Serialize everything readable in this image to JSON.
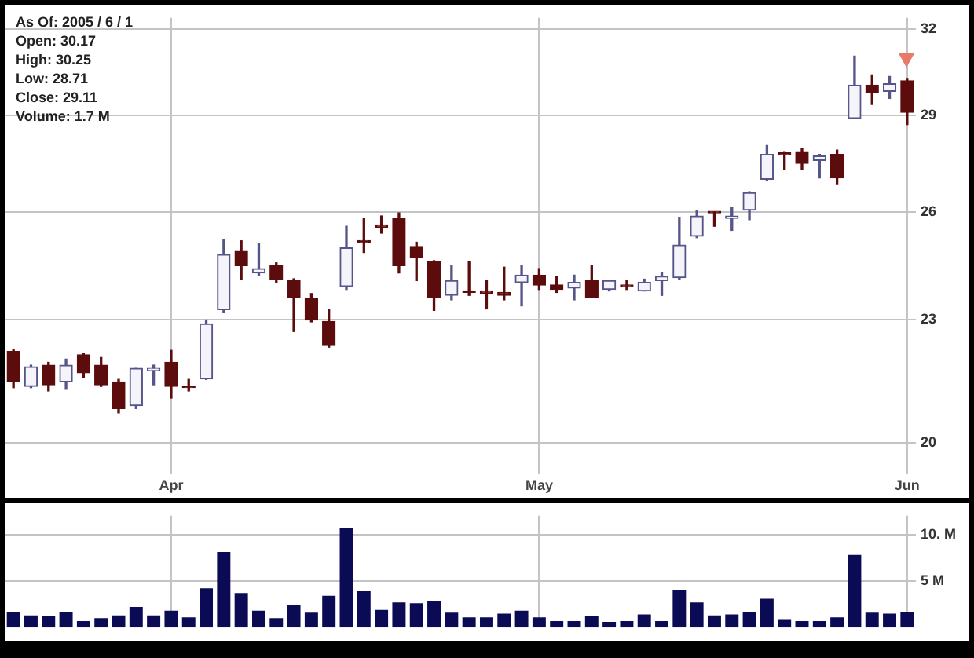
{
  "chart_data": [
    {
      "type": "candlestick",
      "annotations": [
        "As Of: 2005 / 6 / 1",
        "Open: 30.17",
        "High: 30.25",
        "Low: 28.71",
        "Close: 29.11",
        "Volume: 1.7 M"
      ],
      "categories": [
        null,
        null,
        null,
        null,
        null,
        null,
        null,
        null,
        null,
        "Apr",
        null,
        null,
        null,
        null,
        null,
        null,
        null,
        null,
        null,
        null,
        null,
        null,
        null,
        null,
        null,
        null,
        null,
        null,
        null,
        null,
        "May",
        null,
        null,
        null,
        null,
        null,
        null,
        null,
        null,
        null,
        null,
        null,
        null,
        null,
        null,
        null,
        null,
        null,
        null,
        null,
        null,
        "Jun"
      ],
      "ohlc": [
        [
          22.19,
          22.25,
          21.3,
          21.45
        ],
        [
          21.33,
          21.85,
          21.3,
          21.81
        ],
        [
          21.85,
          21.92,
          21.22,
          21.37
        ],
        [
          21.44,
          22.0,
          21.26,
          21.85
        ],
        [
          22.11,
          22.15,
          21.55,
          21.66
        ],
        [
          21.85,
          22.04,
          21.33,
          21.37
        ],
        [
          21.44,
          21.5,
          20.7,
          20.8
        ],
        [
          20.87,
          21.77,
          20.8,
          21.77
        ],
        [
          21.72,
          21.85,
          21.37,
          21.77
        ],
        [
          21.92,
          22.22,
          21.05,
          21.33
        ],
        [
          21.33,
          21.5,
          21.22,
          21.3
        ],
        [
          21.51,
          23.0,
          21.5,
          22.9
        ],
        [
          23.27,
          25.2,
          23.2,
          24.77
        ],
        [
          24.86,
          25.16,
          24.09,
          24.46
        ],
        [
          24.26,
          25.08,
          24.2,
          24.38
        ],
        [
          24.46,
          24.54,
          24.0,
          24.09
        ],
        [
          24.05,
          24.1,
          22.7,
          23.6
        ],
        [
          23.57,
          23.7,
          22.95,
          23.0
        ],
        [
          22.96,
          23.27,
          22.3,
          22.34
        ],
        [
          23.89,
          25.58,
          23.81,
          24.96
        ],
        [
          25.16,
          25.8,
          24.83,
          25.12
        ],
        [
          25.62,
          25.88,
          25.38,
          25.54
        ],
        [
          25.8,
          25.97,
          24.26,
          24.46
        ],
        [
          25.0,
          25.12,
          24.05,
          24.7
        ],
        [
          24.58,
          24.6,
          23.25,
          23.6
        ],
        [
          23.65,
          24.46,
          23.53,
          24.05
        ],
        [
          23.77,
          24.58,
          23.65,
          23.73
        ],
        [
          23.77,
          24.05,
          23.29,
          23.7
        ],
        [
          23.73,
          24.42,
          23.53,
          23.65
        ],
        [
          24.0,
          24.46,
          23.37,
          24.2
        ],
        [
          24.2,
          24.38,
          23.81,
          23.93
        ],
        [
          23.93,
          24.17,
          23.73,
          23.81
        ],
        [
          23.85,
          24.2,
          23.53,
          24.0
        ],
        [
          24.05,
          24.46,
          23.6,
          23.6
        ],
        [
          23.81,
          24.05,
          23.77,
          24.05
        ],
        [
          23.93,
          24.05,
          23.81,
          23.89
        ],
        [
          23.77,
          24.09,
          23.77,
          24.0
        ],
        [
          24.05,
          24.26,
          23.65,
          24.17
        ],
        [
          24.13,
          25.84,
          24.09,
          25.04
        ],
        [
          25.29,
          26.05,
          25.25,
          25.88
        ],
        [
          26.0,
          26.0,
          25.58,
          25.97
        ],
        [
          25.81,
          26.13,
          25.46,
          25.88
        ],
        [
          26.05,
          26.6,
          25.77,
          26.57
        ],
        [
          26.98,
          28.03,
          26.94,
          27.75
        ],
        [
          27.8,
          27.84,
          27.29,
          27.75
        ],
        [
          27.84,
          27.94,
          27.29,
          27.47
        ],
        [
          27.56,
          27.75,
          27.02,
          27.7
        ],
        [
          27.75,
          27.89,
          26.84,
          27.02
        ],
        [
          28.91,
          31.03,
          28.91,
          30.02
        ],
        [
          30.02,
          30.37,
          29.37,
          29.76
        ],
        [
          29.81,
          30.32,
          29.57,
          30.07
        ],
        [
          30.17,
          30.25,
          28.71,
          29.11
        ]
      ],
      "ylim": [
        19.3,
        32.4
      ],
      "yticks": [
        20,
        23,
        26,
        29,
        32
      ],
      "log": "y",
      "grid": true,
      "marker": "triangle"
    },
    {
      "type": "bar",
      "categories": [
        null,
        null,
        null,
        null,
        null,
        null,
        null,
        null,
        null,
        null,
        null,
        null,
        null,
        null,
        null,
        null,
        null,
        null,
        null,
        null,
        null,
        null,
        null,
        null,
        null,
        null,
        null,
        null,
        null,
        null,
        null,
        null,
        null,
        null,
        null,
        null,
        null,
        null,
        null,
        null,
        null,
        null,
        null,
        null,
        null,
        null,
        null,
        null,
        null,
        null,
        null,
        null
      ],
      "values": [
        1.7,
        1.3,
        1.2,
        1.7,
        0.7,
        1.0,
        1.3,
        2.2,
        1.3,
        1.8,
        1.1,
        4.2,
        8.1,
        3.7,
        1.8,
        1.0,
        2.4,
        1.6,
        3.4,
        10.7,
        3.9,
        1.9,
        2.7,
        2.6,
        2.8,
        1.6,
        1.1,
        1.1,
        1.5,
        1.8,
        1.1,
        0.7,
        0.7,
        1.2,
        0.6,
        0.7,
        1.4,
        0.7,
        4.0,
        2.7,
        1.3,
        1.4,
        1.7,
        3.1,
        0.9,
        0.7,
        0.7,
        1.1,
        7.8,
        1.6,
        1.5,
        1.7
      ],
      "color": "#0b0b55",
      "ylim": [
        0,
        12
      ],
      "yticks": [
        {
          "value": 5,
          "label": "5 M"
        },
        {
          "value": 10,
          "label": "10. M"
        }
      ],
      "grid": true,
      "tick_labels": "y"
    }
  ]
}
